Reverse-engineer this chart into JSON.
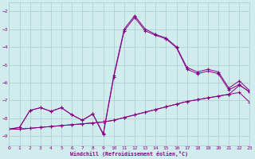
{
  "xlabel": "Windchill (Refroidissement éolien,°C)",
  "background_color": "#d0ecec",
  "grid_color": "#b0d0d0",
  "line_color": "#880088",
  "xlim": [
    0,
    23
  ],
  "ylim": [
    -9.5,
    -1.5
  ],
  "xticks": [
    0,
    1,
    2,
    3,
    4,
    5,
    6,
    7,
    8,
    9,
    10,
    11,
    12,
    13,
    14,
    15,
    16,
    17,
    18,
    19,
    20,
    21,
    22,
    23
  ],
  "yticks": [
    -9,
    -8,
    -7,
    -6,
    -5,
    -4,
    -3,
    -2
  ],
  "curve1_x": [
    0,
    1,
    2,
    3,
    4,
    5,
    6,
    7,
    8,
    9,
    10,
    11,
    12,
    13,
    14,
    15,
    16,
    17,
    18,
    19,
    20,
    21,
    22,
    23
  ],
  "curve1_y": [
    -8.6,
    -8.6,
    -8.55,
    -8.5,
    -8.45,
    -8.4,
    -8.35,
    -8.3,
    -8.25,
    -8.2,
    -8.1,
    -7.95,
    -7.8,
    -7.65,
    -7.5,
    -7.35,
    -7.2,
    -7.05,
    -6.95,
    -6.85,
    -6.75,
    -6.65,
    -6.55,
    -7.1
  ],
  "curve2_x": [
    0,
    1,
    2,
    3,
    4,
    5,
    6,
    7,
    8,
    9,
    10,
    11,
    12,
    13,
    14,
    15,
    16,
    17,
    18,
    19,
    20,
    21,
    22,
    23
  ],
  "curve2_y": [
    -8.6,
    -8.6,
    -8.55,
    -8.5,
    -8.45,
    -8.4,
    -8.35,
    -8.3,
    -8.25,
    -8.2,
    -8.1,
    -7.95,
    -7.8,
    -7.65,
    -7.5,
    -7.35,
    -7.2,
    -7.05,
    -6.95,
    -6.85,
    -6.75,
    -6.65,
    -6.15,
    -6.5
  ],
  "curve3_x": [
    0,
    1,
    2,
    3,
    4,
    5,
    6,
    7,
    8,
    9,
    10,
    11,
    12,
    13,
    14,
    15,
    16,
    17,
    18,
    19,
    20,
    21,
    22,
    23
  ],
  "curve3_y": [
    -8.6,
    -8.5,
    -7.55,
    -7.4,
    -7.6,
    -7.4,
    -7.8,
    -8.1,
    -7.75,
    -8.9,
    -5.7,
    -3.1,
    -2.35,
    -3.1,
    -3.35,
    -3.55,
    -4.05,
    -5.25,
    -5.5,
    -5.35,
    -5.5,
    -6.4,
    -6.1,
    -6.55
  ],
  "curve4_x": [
    0,
    1,
    2,
    3,
    4,
    5,
    6,
    7,
    8,
    9,
    10,
    11,
    12,
    13,
    14,
    15,
    16,
    17,
    18,
    19,
    20,
    21,
    22,
    23
  ],
  "curve4_y": [
    -8.6,
    -8.5,
    -7.55,
    -7.4,
    -7.6,
    -7.4,
    -7.8,
    -8.1,
    -7.75,
    -8.85,
    -5.6,
    -3.0,
    -2.25,
    -3.0,
    -3.3,
    -3.5,
    -4.0,
    -5.15,
    -5.4,
    -5.25,
    -5.4,
    -6.3,
    -5.9,
    -6.45
  ]
}
